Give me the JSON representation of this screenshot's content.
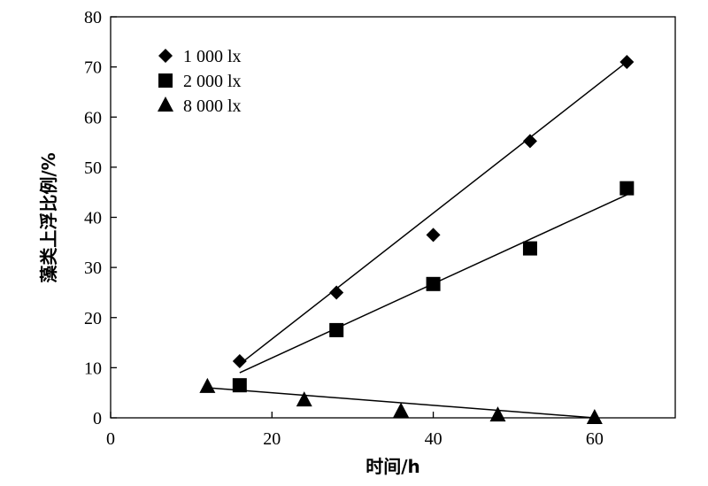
{
  "chart_data": {
    "type": "scatter",
    "xlabel": "时间/h",
    "ylabel": "藻类上浮比例/%",
    "xlim": [
      0,
      70
    ],
    "ylim": [
      0,
      80
    ],
    "xticks": [
      0,
      20,
      40,
      60
    ],
    "yticks": [
      0,
      10,
      20,
      30,
      40,
      50,
      60,
      70,
      80
    ],
    "grid": false,
    "legend_position": "top-left",
    "series": [
      {
        "name": "1 000 lx",
        "marker": "diamond",
        "color": "#000000",
        "x": [
          16,
          28,
          40,
          52,
          64
        ],
        "y": [
          11.3,
          25,
          36.5,
          55.2,
          71
        ],
        "fit_line": [
          [
            16,
            10.7
          ],
          [
            64,
            71
          ]
        ]
      },
      {
        "name": "2 000 lx",
        "marker": "square",
        "color": "#000000",
        "x": [
          16,
          28,
          40,
          52,
          64
        ],
        "y": [
          6.5,
          17.5,
          26.7,
          33.8,
          45.8
        ],
        "fit_line": [
          [
            16,
            9
          ],
          [
            64,
            44.5
          ]
        ]
      },
      {
        "name": "8 000 lx",
        "marker": "triangle",
        "color": "#000000",
        "x": [
          12,
          24,
          36,
          48,
          60
        ],
        "y": [
          6.2,
          3.5,
          1.3,
          0.5,
          0
        ],
        "fit_line": [
          [
            12,
            6
          ],
          [
            60,
            0
          ]
        ]
      }
    ]
  }
}
